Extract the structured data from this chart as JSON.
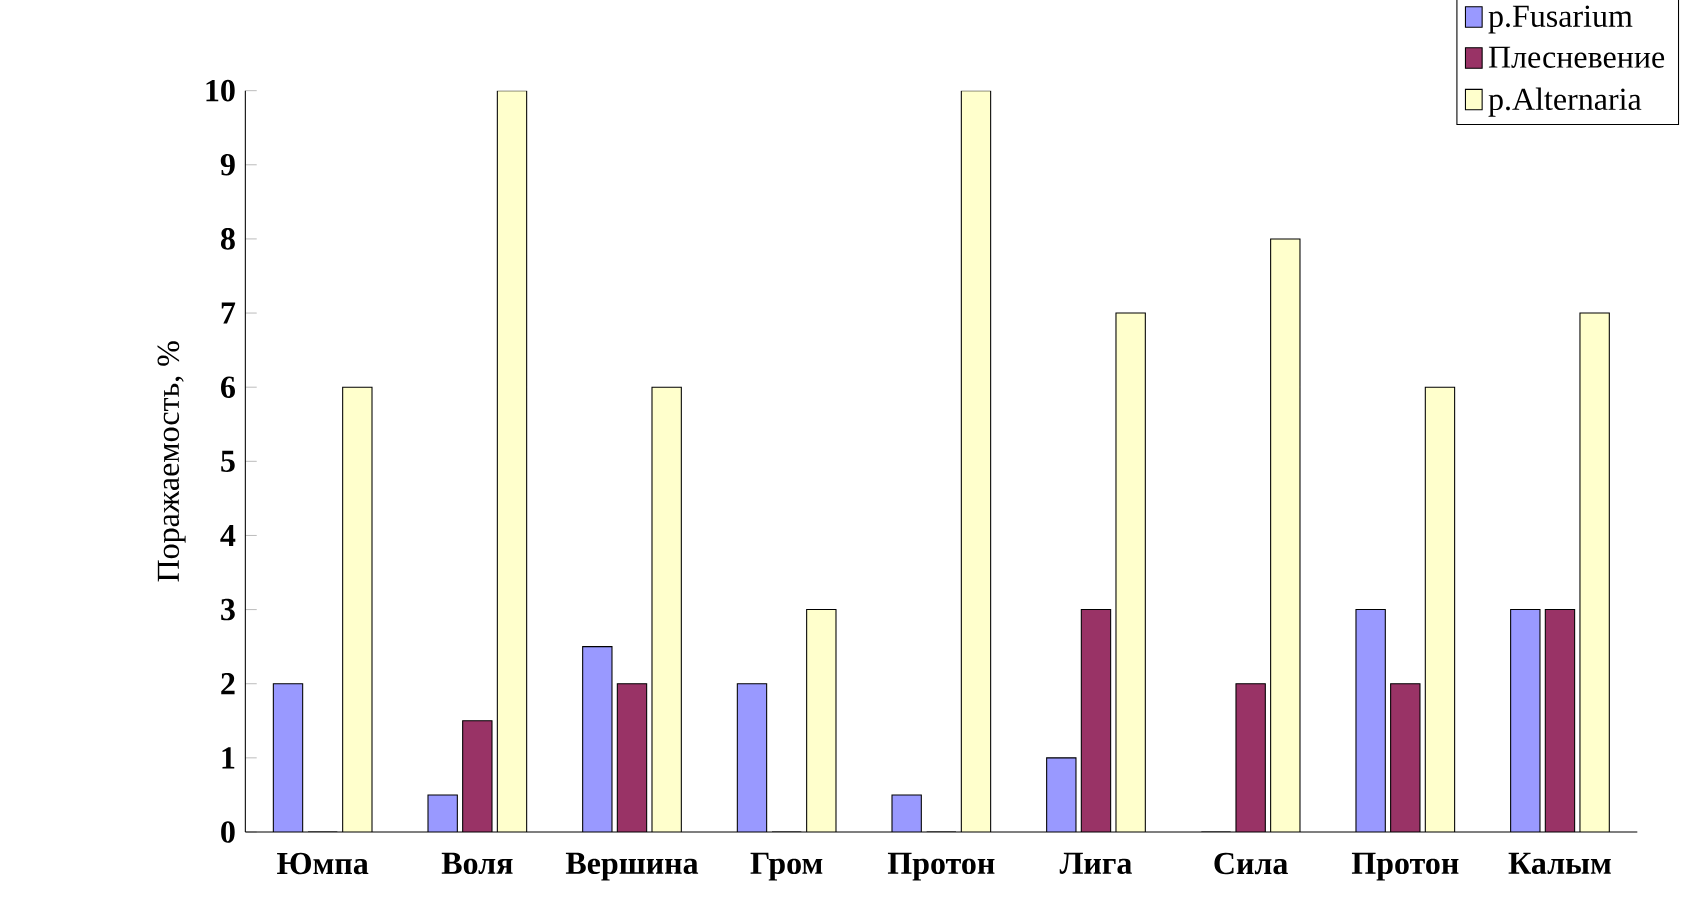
{
  "chart_data": {
    "type": "bar",
    "ylabel": "Поражаемость, %",
    "categories": [
      "Юмпа",
      "Воля",
      "Вершина",
      "Гром",
      "Протон",
      "Лига",
      "Сила",
      "Протон",
      "Калым"
    ],
    "series": [
      {
        "name": "p.Fusarium",
        "color": "#9999ff",
        "values": [
          2,
          0.5,
          2.5,
          2,
          0.5,
          1,
          0,
          3,
          3
        ]
      },
      {
        "name": "Плесневение",
        "color": "#993366",
        "values": [
          0,
          1.5,
          2,
          0,
          0,
          3,
          2,
          2,
          3
        ]
      },
      {
        "name": "p.Alternaria",
        "color": "#ffffcc",
        "values": [
          6,
          10,
          6,
          3,
          10,
          7,
          8,
          6,
          7
        ]
      }
    ],
    "ylim": [
      0,
      10
    ],
    "yticks": [
      0,
      1,
      2,
      3,
      4,
      5,
      6,
      7,
      8,
      9,
      10
    ],
    "grid": false,
    "legend": "top right"
  }
}
